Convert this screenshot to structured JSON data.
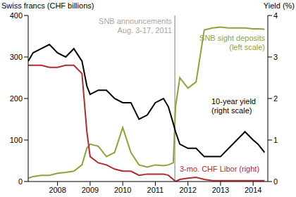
{
  "chart_data": {
    "type": "line",
    "y_label": "Swiss francs (CHF billions)",
    "y2_label": "Yield (%)",
    "x": [
      2007.1,
      2007.25,
      2007.5,
      2007.75,
      2008.0,
      2008.25,
      2008.5,
      2008.75,
      2008.9,
      2009.0,
      2009.25,
      2009.5,
      2009.75,
      2010.0,
      2010.25,
      2010.5,
      2010.75,
      2011.0,
      2011.25,
      2011.4,
      2011.55,
      2011.62,
      2011.75,
      2012.0,
      2012.25,
      2012.5,
      2012.75,
      2013.0,
      2013.25,
      2013.5,
      2013.75,
      2014.0,
      2014.15,
      2014.35
    ],
    "xlim": [
      2007.1,
      2014.45
    ],
    "xticks": [
      2008,
      2009,
      2010,
      2011,
      2012,
      2013,
      2014
    ],
    "ylim": [
      0,
      400
    ],
    "yticks": [
      0,
      100,
      200,
      300,
      400
    ],
    "y2lim": [
      0,
      4
    ],
    "y2ticks": [
      0,
      1,
      2,
      3,
      4
    ],
    "series": [
      {
        "name": "SNB sight deposits (left scale)",
        "color": "#8da33a",
        "values": [
          8,
          12,
          15,
          15,
          20,
          22,
          25,
          40,
          80,
          90,
          85,
          60,
          70,
          130,
          70,
          40,
          35,
          40,
          38,
          40,
          45,
          180,
          250,
          225,
          240,
          365,
          370,
          372,
          370,
          370,
          370,
          368,
          368,
          367
        ]
      },
      {
        "name": "10-year yield (right scale)",
        "color": "#000000",
        "axis": "y2",
        "values": [
          2.9,
          3.1,
          3.2,
          3.3,
          3.1,
          3.0,
          3.2,
          2.9,
          2.3,
          2.1,
          2.2,
          2.2,
          2.0,
          1.9,
          1.9,
          1.5,
          1.6,
          1.9,
          2.0,
          1.8,
          1.4,
          1.2,
          0.9,
          0.8,
          0.8,
          0.6,
          0.6,
          0.6,
          0.8,
          1.0,
          1.2,
          1.0,
          0.9,
          0.7
        ]
      },
      {
        "name": "3-mo. CHF Libor (right)",
        "color": "#b2292e",
        "axis": "y2",
        "values": [
          2.8,
          2.8,
          2.8,
          2.75,
          2.75,
          2.8,
          2.8,
          2.6,
          1.2,
          0.6,
          0.45,
          0.4,
          0.3,
          0.25,
          0.25,
          0.15,
          0.18,
          0.18,
          0.18,
          0.15,
          0.05,
          0.0,
          0.05,
          0.08,
          0.1,
          0.05,
          0.02,
          0.02,
          0.02,
          0.02,
          0.02,
          0.02,
          0.02,
          0.02
        ]
      }
    ],
    "annotations": [
      {
        "x": 2011.6,
        "text": "SNB announcements Aug. 3-17, 2011",
        "color": "#a6a6a6"
      }
    ]
  }
}
